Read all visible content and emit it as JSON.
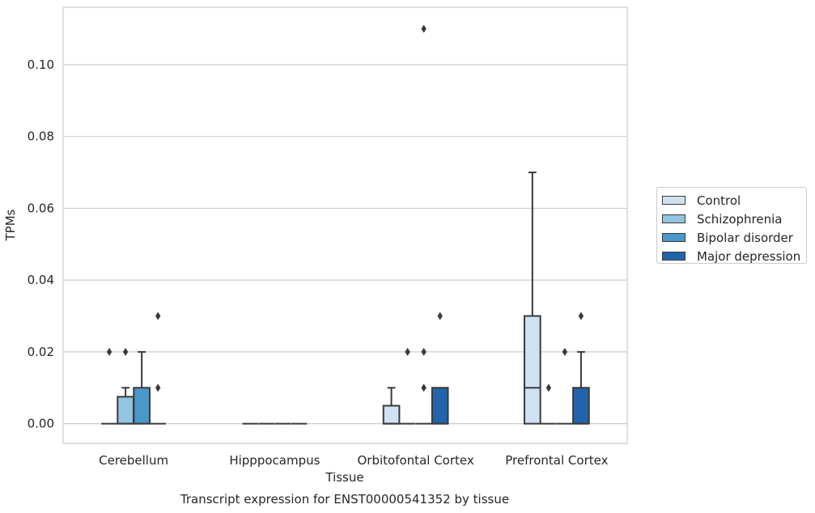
{
  "chart_data": {
    "type": "box",
    "caption": "Transcript expression for ENST00000541352 by tissue",
    "xlabel": "Tissue",
    "ylabel": "TPMs",
    "ylim": [
      -0.0055,
      0.116
    ],
    "yticks": [
      "0.00",
      "0.02",
      "0.04",
      "0.06",
      "0.08",
      "0.10"
    ],
    "ytick_values": [
      0,
      0.02,
      0.04,
      0.06,
      0.08,
      0.1
    ],
    "grid": true,
    "legend_position": "right",
    "categories": [
      "Cerebellum",
      "Hipppocampus",
      "Orbitofontal Cortex",
      "Prefrontal Cortex"
    ],
    "series": [
      {
        "name": "Control",
        "color": "#d0e1f2",
        "boxes": [
          {
            "q1": 0,
            "median": 0,
            "q3": 0,
            "whislo": 0,
            "whishi": 0,
            "fliers": [
              0.02
            ]
          },
          {
            "q1": 0,
            "median": 0,
            "q3": 0,
            "whislo": 0,
            "whishi": 0,
            "fliers": []
          },
          {
            "q1": 0,
            "median": 0,
            "q3": 0.005,
            "whislo": 0,
            "whishi": 0.01,
            "fliers": []
          },
          {
            "q1": 0,
            "median": 0.01,
            "q3": 0.03,
            "whislo": 0,
            "whishi": 0.07,
            "fliers": []
          }
        ]
      },
      {
        "name": "Schizophrenia",
        "color": "#94c4df",
        "boxes": [
          {
            "q1": 0,
            "median": 0,
            "q3": 0.0075,
            "whislo": 0,
            "whishi": 0.01,
            "fliers": [
              0.02
            ]
          },
          {
            "q1": 0,
            "median": 0,
            "q3": 0,
            "whislo": 0,
            "whishi": 0,
            "fliers": []
          },
          {
            "q1": 0,
            "median": 0,
            "q3": 0,
            "whislo": 0,
            "whishi": 0,
            "fliers": [
              0.02
            ]
          },
          {
            "q1": 0,
            "median": 0,
            "q3": 0,
            "whislo": 0,
            "whishi": 0,
            "fliers": [
              0.01
            ]
          }
        ]
      },
      {
        "name": "Bipolar disorder",
        "color": "#4a98c9",
        "boxes": [
          {
            "q1": 0,
            "median": 0,
            "q3": 0.01,
            "whislo": 0,
            "whishi": 0.02,
            "fliers": []
          },
          {
            "q1": 0,
            "median": 0,
            "q3": 0,
            "whislo": 0,
            "whishi": 0,
            "fliers": []
          },
          {
            "q1": 0,
            "median": 0,
            "q3": 0,
            "whislo": 0,
            "whishi": 0,
            "fliers": [
              0.01,
              0.02,
              0.11
            ]
          },
          {
            "q1": 0,
            "median": 0,
            "q3": 0,
            "whislo": 0,
            "whishi": 0,
            "fliers": [
              0.02
            ]
          }
        ]
      },
      {
        "name": "Major depression",
        "color": "#2164ab",
        "boxes": [
          {
            "q1": 0,
            "median": 0,
            "q3": 0,
            "whislo": 0,
            "whishi": 0,
            "fliers": [
              0.01,
              0.03
            ]
          },
          {
            "q1": 0,
            "median": 0,
            "q3": 0,
            "whislo": 0,
            "whishi": 0,
            "fliers": []
          },
          {
            "q1": 0,
            "median": 0,
            "q3": 0.01,
            "whislo": 0,
            "whishi": 0.01,
            "fliers": [
              0.03
            ]
          },
          {
            "q1": 0,
            "median": 0,
            "q3": 0.01,
            "whislo": 0,
            "whishi": 0.02,
            "fliers": [
              0.03
            ]
          }
        ]
      }
    ]
  }
}
